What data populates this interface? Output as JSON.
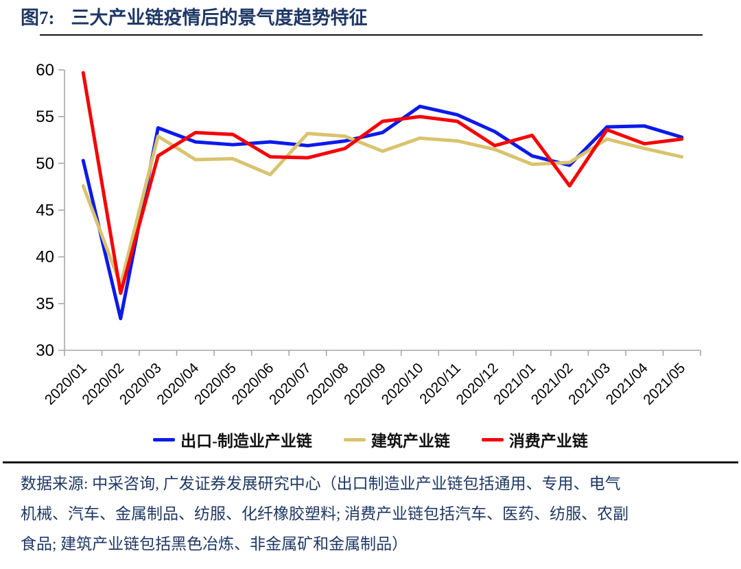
{
  "header": {
    "figure_label": "图7:",
    "title": "三大产业链疫情后的景气度趋势特征"
  },
  "chart_data": {
    "type": "line",
    "title": "三大产业链疫情后的景气度趋势特征",
    "categories": [
      "2020/01",
      "2020/02",
      "2020/03",
      "2020/04",
      "2020/05",
      "2020/06",
      "2020/07",
      "2020/08",
      "2020/09",
      "2020/10",
      "2020/11",
      "2020/12",
      "2021/01",
      "2021/02",
      "2021/03",
      "2021/04",
      "2021/05"
    ],
    "series": [
      {
        "name": "出口-制造业产业链",
        "color": "#0B1AEA",
        "values": [
          50.3,
          33.4,
          53.8,
          52.3,
          52.0,
          52.3,
          51.9,
          52.4,
          53.3,
          56.1,
          55.2,
          53.4,
          50.8,
          49.8,
          53.9,
          54.0,
          52.8
        ]
      },
      {
        "name": "建筑产业链",
        "color": "#D9C36E",
        "values": [
          47.6,
          37.0,
          52.9,
          50.4,
          50.5,
          48.8,
          53.2,
          52.9,
          51.3,
          52.7,
          52.4,
          51.5,
          49.9,
          50.1,
          52.6,
          51.6,
          50.7
        ]
      },
      {
        "name": "消费产业链",
        "color": "#F40505",
        "values": [
          59.7,
          36.1,
          50.8,
          53.3,
          53.1,
          50.7,
          50.6,
          51.6,
          54.5,
          55.0,
          54.5,
          51.9,
          53.0,
          47.6,
          53.6,
          52.1,
          52.6
        ]
      }
    ],
    "xlabel": "",
    "ylabel": "",
    "ylim": [
      30,
      60
    ],
    "yticks": [
      30,
      35,
      40,
      45,
      50,
      55,
      60
    ],
    "grid": false,
    "legend_position": "bottom",
    "axis_color": "#A6A6A6",
    "tick_label_color": "#000000"
  },
  "footer": {
    "lines": [
      "数据来源: 中采咨询, 广发证券发展研究中心（出口制造业产业链包括通用、专用、电气",
      "机械、汽车、金属制品、纺服、化纤橡胶塑料; 消费产业链包括汽车、医药、纺服、农副",
      "食品; 建筑产业链包括黑色冶炼、非金属矿和金属制品）"
    ]
  },
  "colors": {
    "title_text": "#1E3765",
    "footer_text": "#1F3864",
    "divider": "#141414"
  }
}
